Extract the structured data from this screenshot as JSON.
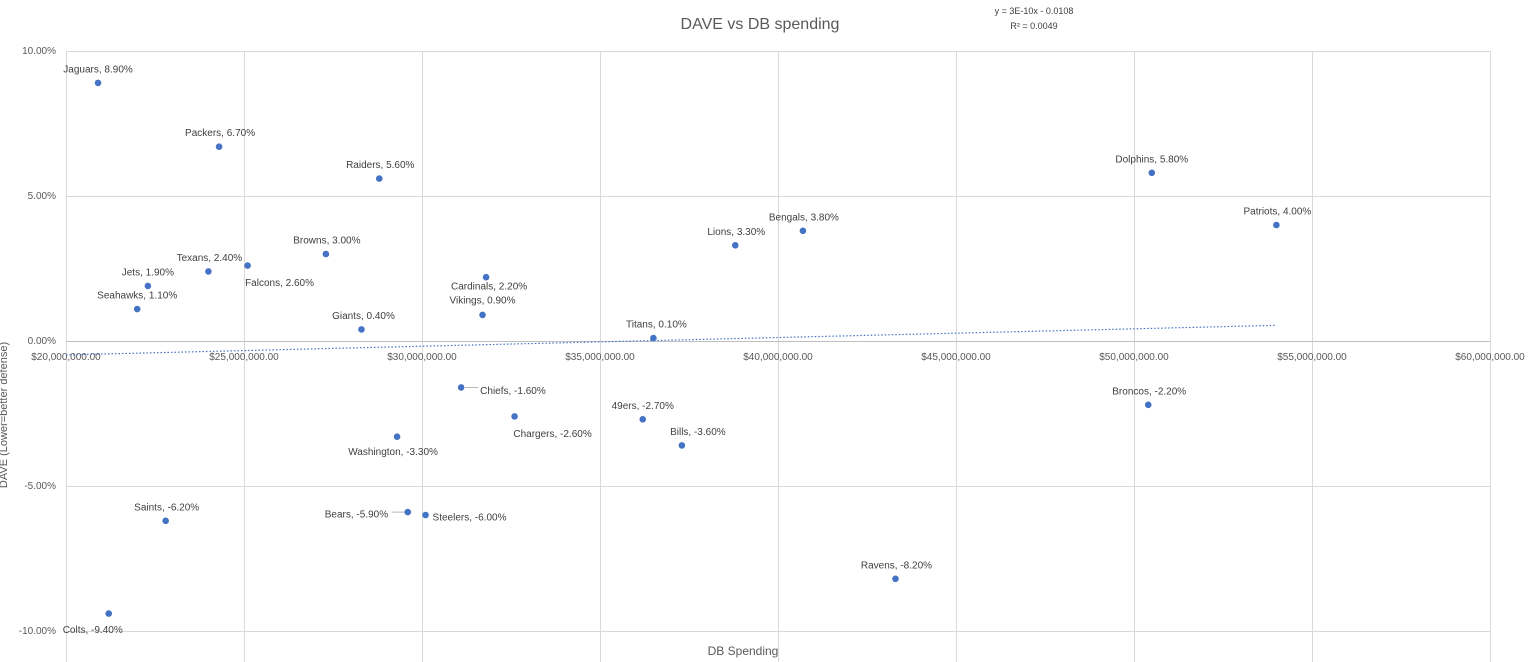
{
  "chart_data": {
    "type": "scatter",
    "title": "DAVE vs DB spending",
    "xlabel": "DB Spending",
    "ylabel": "DAVE (Lower=better defense)",
    "xlim": [
      20000000,
      60000000
    ],
    "ylim": [
      -0.1,
      0.1
    ],
    "grid": true,
    "x_ticks": [
      {
        "value": 20000000,
        "label": "$20,000,000.00"
      },
      {
        "value": 25000000,
        "label": "$25,000,000.00"
      },
      {
        "value": 30000000,
        "label": "$30,000,000.00"
      },
      {
        "value": 35000000,
        "label": "$35,000,000.00"
      },
      {
        "value": 40000000,
        "label": "$40,000,000.00"
      },
      {
        "value": 45000000,
        "label": "$45,000,000.00"
      },
      {
        "value": 50000000,
        "label": "$50,000,000.00"
      },
      {
        "value": 55000000,
        "label": "$55,000,000.00"
      },
      {
        "value": 60000000,
        "label": "$60,000,000.00"
      }
    ],
    "y_ticks": [
      {
        "value": 0.1,
        "label": "10.00%"
      },
      {
        "value": 0.05,
        "label": "5.00%"
      },
      {
        "value": 0.0,
        "label": "0.00%"
      },
      {
        "value": -0.05,
        "label": "-5.00%"
      },
      {
        "value": -0.1,
        "label": "-10.00%"
      }
    ],
    "points": [
      {
        "x": 20900000,
        "y": 0.089,
        "label": "Jaguars, 8.90%"
      },
      {
        "x": 24300000,
        "y": 0.067,
        "label": "Packers, 6.70%"
      },
      {
        "x": 28800000,
        "y": 0.056,
        "label": "Raiders, 5.60%"
      },
      {
        "x": 27300000,
        "y": 0.03,
        "label": "Browns, 3.00%"
      },
      {
        "x": 25100000,
        "y": 0.026,
        "label": "Falcons, 2.60%"
      },
      {
        "x": 24000000,
        "y": 0.024,
        "label": "Texans, 2.40%"
      },
      {
        "x": 22300000,
        "y": 0.019,
        "label": "Jets, 1.90%"
      },
      {
        "x": 22000000,
        "y": 0.011,
        "label": "Seahawks, 1.10%"
      },
      {
        "x": 28300000,
        "y": 0.004,
        "label": "Giants, 0.40%"
      },
      {
        "x": 31800000,
        "y": 0.022,
        "label": "Cardinals, 2.20%"
      },
      {
        "x": 31700000,
        "y": 0.009,
        "label": "Vikings, 0.90%"
      },
      {
        "x": 36500000,
        "y": 0.001,
        "label": "Titans, 0.10%"
      },
      {
        "x": 38800000,
        "y": 0.033,
        "label": "Lions, 3.30%"
      },
      {
        "x": 40700000,
        "y": 0.038,
        "label": "Bengals, 3.80%"
      },
      {
        "x": 50500000,
        "y": 0.058,
        "label": "Dolphins, 5.80%"
      },
      {
        "x": 54000000,
        "y": 0.04,
        "label": "Patriots, 4.00%"
      },
      {
        "x": 31100000,
        "y": -0.016,
        "label": "Chiefs, -1.60%"
      },
      {
        "x": 32600000,
        "y": -0.026,
        "label": "Chargers, -2.60%"
      },
      {
        "x": 36200000,
        "y": -0.027,
        "label": "49ers, -2.70%"
      },
      {
        "x": 37300000,
        "y": -0.036,
        "label": "Bills, -3.60%"
      },
      {
        "x": 29300000,
        "y": -0.033,
        "label": "Washington, -3.30%"
      },
      {
        "x": 50400000,
        "y": -0.022,
        "label": "Broncos, -2.20%"
      },
      {
        "x": 22800000,
        "y": -0.062,
        "label": "Saints, -6.20%"
      },
      {
        "x": 29600000,
        "y": -0.059,
        "label": "Bears, -5.90%"
      },
      {
        "x": 30100000,
        "y": -0.06,
        "label": "Steelers, -6.00%"
      },
      {
        "x": 43300000,
        "y": -0.082,
        "label": "Ravens, -8.20%"
      },
      {
        "x": 21200000,
        "y": -0.094,
        "label": "Colts, -9.40%"
      }
    ],
    "trendline": {
      "type": "linear",
      "slope": 3e-10,
      "intercept": -0.0108,
      "x_range": [
        20000000,
        54000000
      ],
      "equation": "y = 3E-10x - 0.0108",
      "r_squared": "R² = 0.0049"
    },
    "colors": {
      "point": "#4472c4",
      "trendline": "#4472c4",
      "grid": "#d9d9d9",
      "axis": "#bfbfbf"
    }
  }
}
